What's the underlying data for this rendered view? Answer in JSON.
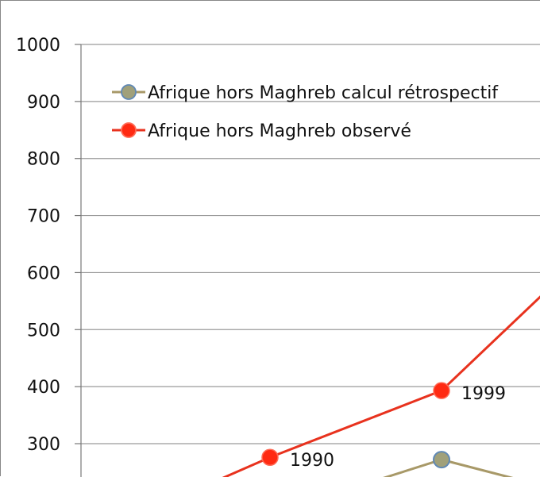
{
  "chart_data": {
    "type": "line",
    "title": "",
    "xlabel": "",
    "ylabel": "",
    "ylim": [
      300,
      1000
    ],
    "yticks": [
      300,
      400,
      500,
      600,
      700,
      800,
      900,
      1000
    ],
    "grid": "horizontal",
    "legend_position": "top-left",
    "series": [
      {
        "name": "Afrique hors Maghreb calcul rétrospectif",
        "color": "#a89968",
        "marker_color": "#a0a07a",
        "points": [
          {
            "x": 1999,
            "y": 272
          }
        ]
      },
      {
        "name": "Afrique hors Maghreb observé",
        "color": "#e8321e",
        "marker_color": "#ff2a12",
        "points": [
          {
            "x": 1990,
            "y": 276,
            "label": "1990"
          },
          {
            "x": 1999,
            "y": 393,
            "label": "1999"
          }
        ]
      }
    ]
  }
}
